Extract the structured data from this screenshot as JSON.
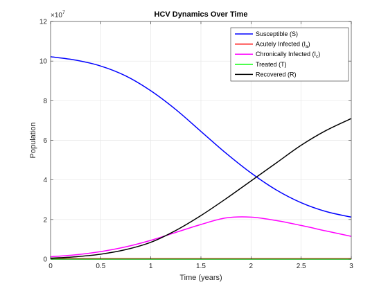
{
  "chart_data": {
    "type": "line",
    "title": "HCV Dynamics Over Time",
    "xlabel": "Time (years)",
    "ylabel": "Population",
    "y_exponent_label": "×10",
    "y_exponent_power": "7",
    "xlim": [
      0,
      3
    ],
    "ylim": [
      0,
      12
    ],
    "y_scale_factor": 10000000,
    "grid": true,
    "legend_position": "top-right",
    "x_ticks": [
      0,
      0.5,
      1,
      1.5,
      2,
      2.5,
      3
    ],
    "x_tick_labels": [
      "0",
      "0.5",
      "1",
      "1.5",
      "2",
      "2.5",
      "3"
    ],
    "y_ticks": [
      0,
      2,
      4,
      6,
      8,
      10,
      12
    ],
    "y_tick_labels": [
      "0",
      "2",
      "4",
      "6",
      "8",
      "10",
      "12"
    ],
    "x": [
      0,
      0.25,
      0.5,
      0.75,
      1,
      1.25,
      1.5,
      1.75,
      2,
      2.25,
      2.5,
      2.75,
      3
    ],
    "series": [
      {
        "name": "Susceptible (S)",
        "color": "#0000ff",
        "values": [
          10.22,
          10.05,
          9.75,
          9.25,
          8.5,
          7.55,
          6.45,
          5.35,
          4.35,
          3.5,
          2.85,
          2.4,
          2.12
        ]
      },
      {
        "name": "Acutely Infected (Ia)",
        "legend_base": "Acutely Infected (I",
        "legend_sub": "a",
        "legend_tail": ")",
        "color": "#ff0000",
        "values": [
          0.02,
          0.02,
          0.02,
          0.02,
          0.02,
          0.02,
          0.02,
          0.02,
          0.02,
          0.02,
          0.02,
          0.02,
          0.02
        ]
      },
      {
        "name": "Chronically Infected (Ic)",
        "legend_base": "Chronically Infected (I",
        "legend_sub": "c",
        "legend_tail": ")",
        "color": "#ff00ff",
        "values": [
          0.12,
          0.22,
          0.38,
          0.62,
          0.95,
          1.35,
          1.75,
          2.08,
          2.12,
          1.95,
          1.7,
          1.42,
          1.15
        ]
      },
      {
        "name": "Treated (T)",
        "color": "#00ff00",
        "values": [
          0.0,
          0.0,
          0.0,
          0.0,
          0.0,
          0.0,
          0.0,
          0.0,
          0.0,
          0.0,
          0.0,
          0.0,
          0.0
        ]
      },
      {
        "name": "Recovered (R)",
        "color": "#000000",
        "values": [
          0.05,
          0.12,
          0.25,
          0.48,
          0.85,
          1.45,
          2.2,
          3.05,
          3.95,
          4.85,
          5.75,
          6.5,
          7.1
        ]
      }
    ]
  }
}
